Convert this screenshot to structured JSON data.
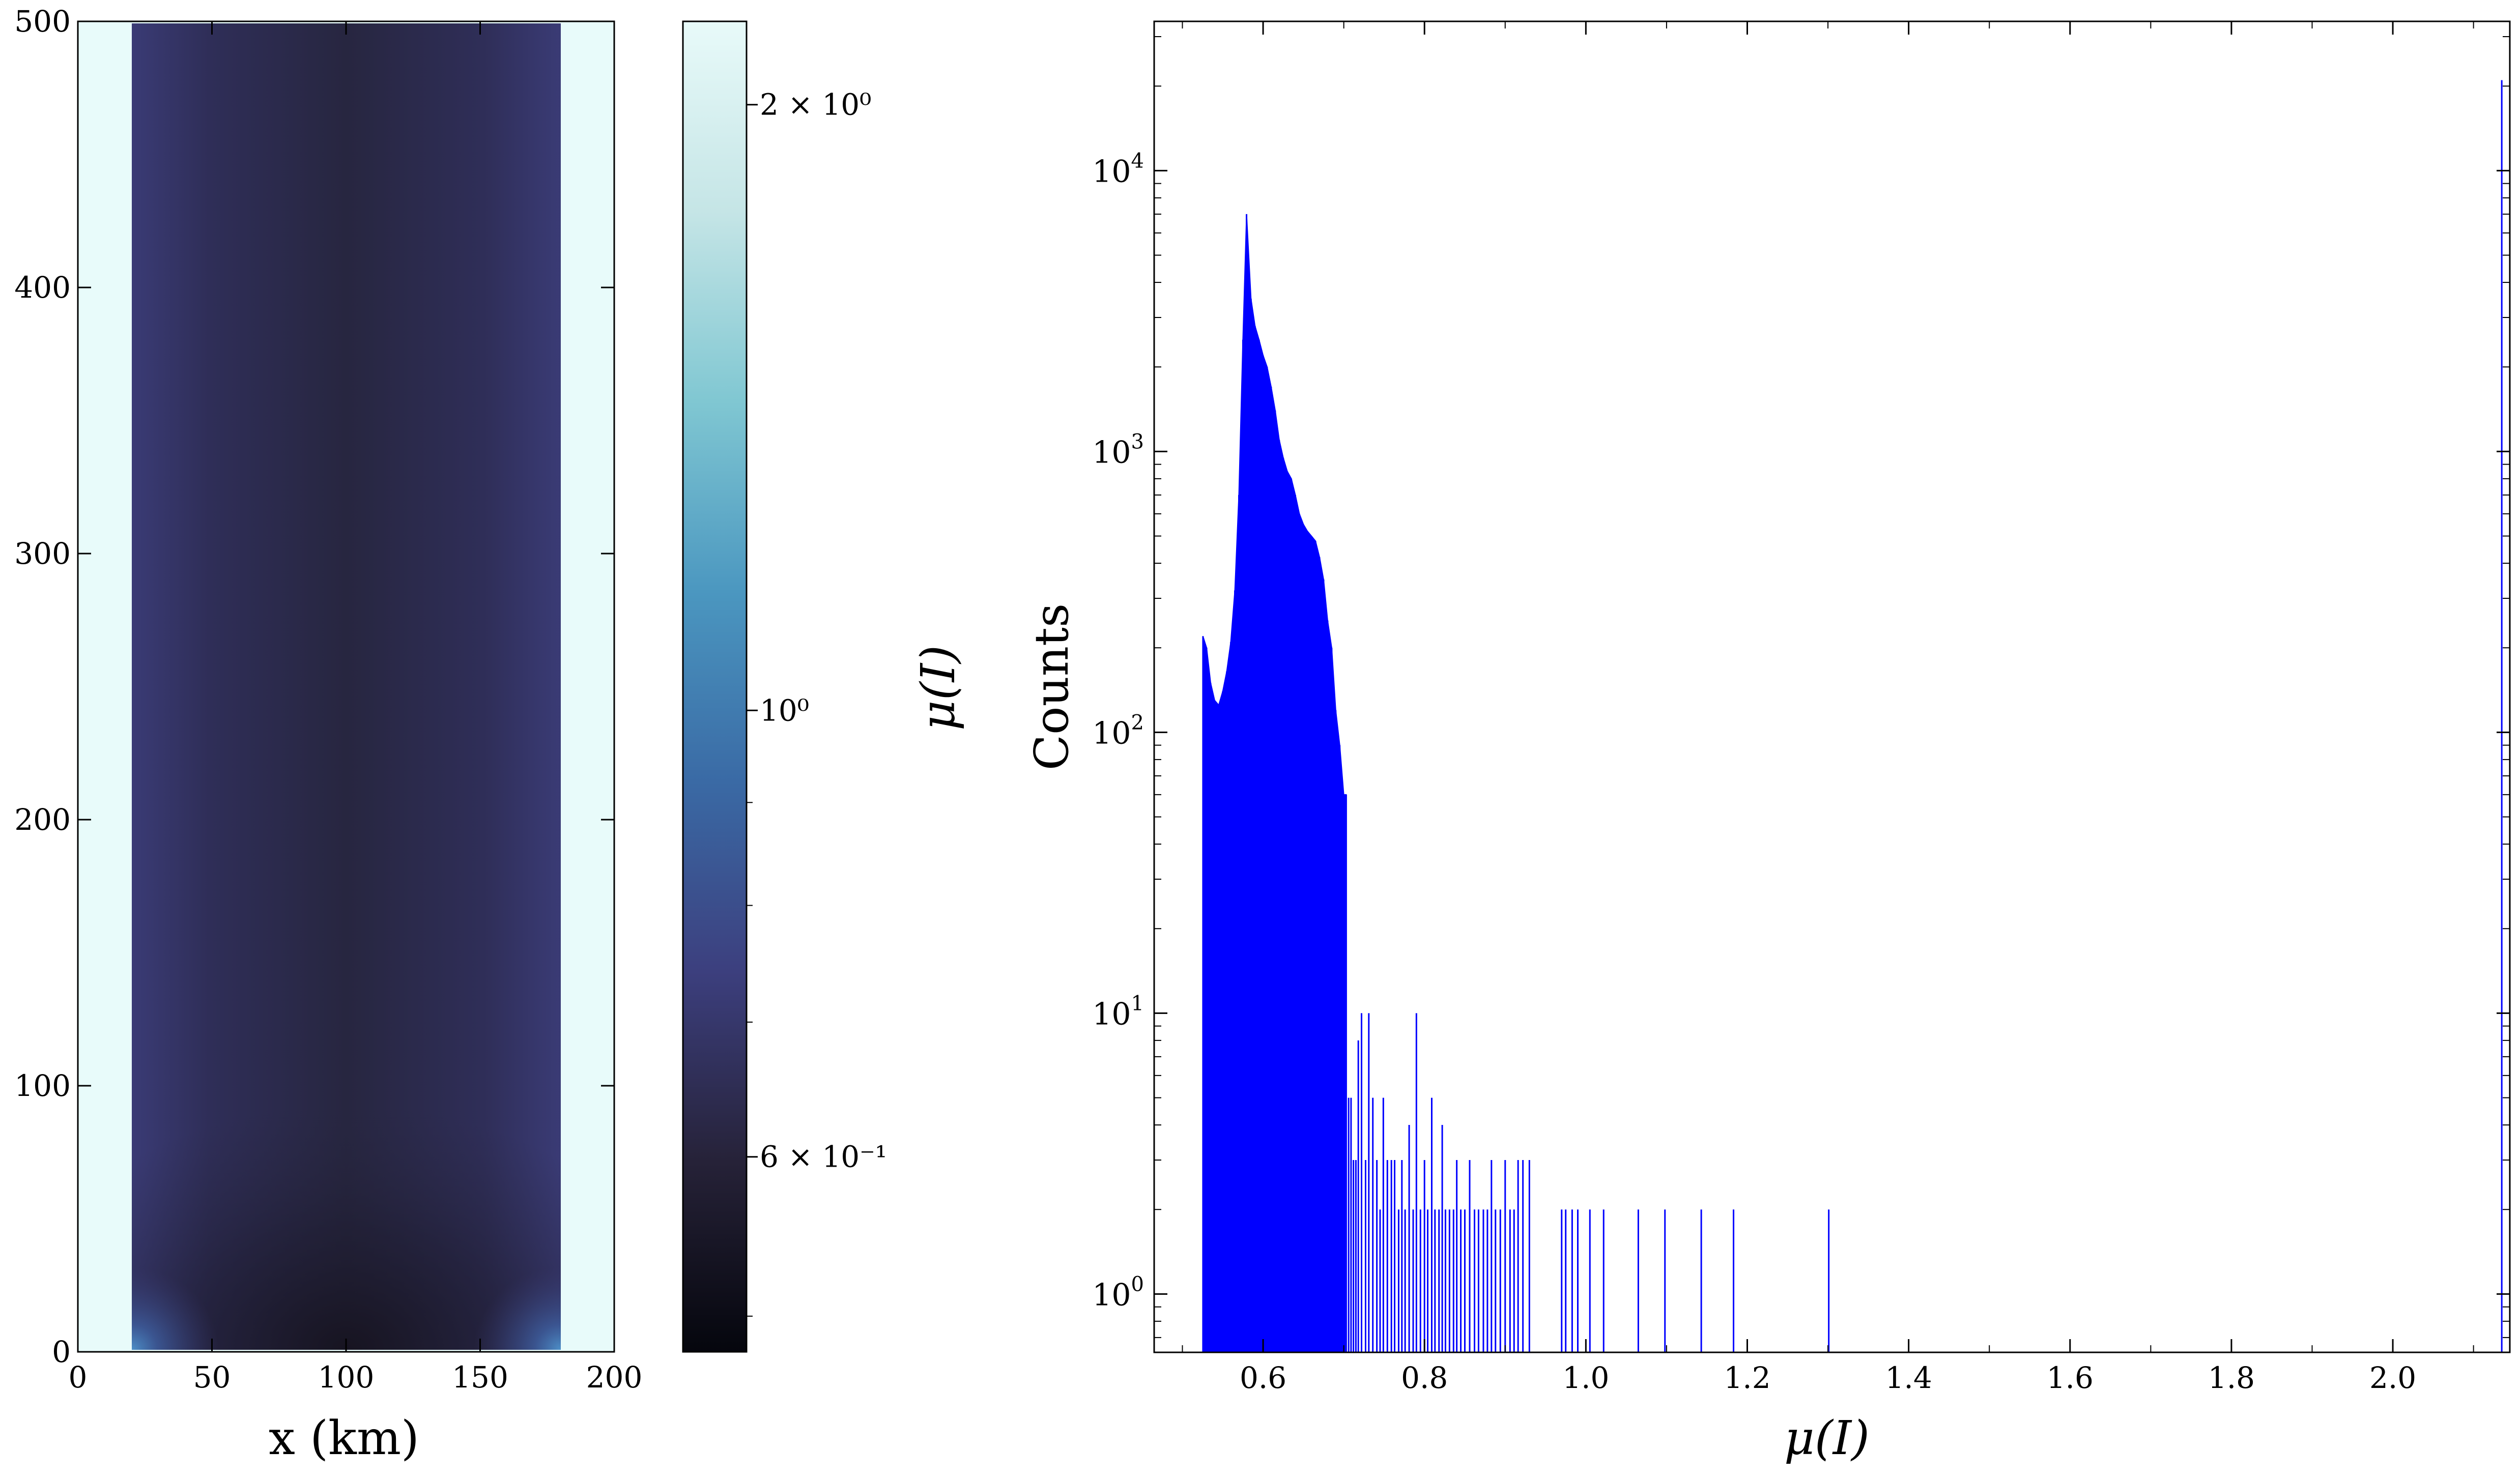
{
  "chart_data": [
    {
      "type": "heatmap",
      "title": "",
      "xlabel": "x (km)",
      "ylabel": "",
      "xlim": [
        0,
        200
      ],
      "ylim": [
        0,
        500
      ],
      "x_ticks": [
        0,
        50,
        100,
        150,
        200
      ],
      "y_ticks": [
        0,
        100,
        200,
        300,
        400,
        500
      ],
      "field_extent_x": [
        20,
        180
      ],
      "field_extent_y": [
        0,
        500
      ],
      "background_value": "above colorbar max",
      "description_values": {
        "interior_typical": 0.56,
        "side_edges": 0.64,
        "bottom_center_min": 0.52,
        "bottom_corners": 1.1
      },
      "colorbar": {
        "label": "μ(I)",
        "scale": "log",
        "range": [
          0.48,
          2.2
        ],
        "ticks": [
          {
            "value": 2,
            "label": "2 × 10⁰"
          },
          {
            "value": 1,
            "label": "10⁰"
          },
          {
            "value": 0.6,
            "label": "6 × 10⁻¹"
          }
        ],
        "colormap_stops": [
          "#05060d",
          "#262238",
          "#3c3f7e",
          "#3a6aa5",
          "#4b97c0",
          "#80c7d2",
          "#c5e5e6",
          "#e8faf9"
        ]
      },
      "colors": {
        "background": "#e8fbfa",
        "field_interior": "#272640",
        "field_edges": "#35356a"
      }
    },
    {
      "type": "bar",
      "title": "",
      "xlabel": "μ(I)",
      "ylabel": "Counts",
      "xlim": [
        0.465,
        2.145
      ],
      "ylim": [
        0.62,
        34000
      ],
      "yscale": "log",
      "x_ticks": [
        {
          "value": 0.6,
          "label": "0.6"
        },
        {
          "value": 0.8,
          "label": "0.8"
        },
        {
          "value": 1.0,
          "label": "1.0"
        },
        {
          "value": 1.2,
          "label": "1.2"
        },
        {
          "value": 1.4,
          "label": "1.4"
        },
        {
          "value": 1.6,
          "label": "1.6"
        },
        {
          "value": 1.8,
          "label": "1.8"
        },
        {
          "value": 2.0,
          "label": "2.0"
        }
      ],
      "y_ticks": [
        {
          "value": 1,
          "base": "10",
          "exp": "0"
        },
        {
          "value": 10,
          "base": "10",
          "exp": "1"
        },
        {
          "value": 100,
          "base": "10",
          "exp": "2"
        },
        {
          "value": 1000,
          "base": "10",
          "exp": "3"
        },
        {
          "value": 10000,
          "base": "10",
          "exp": "4"
        }
      ],
      "bar_color": "#0000ff",
      "envelope": [
        [
          0.5255,
          220
        ],
        [
          0.53,
          200
        ],
        [
          0.535,
          150
        ],
        [
          0.54,
          130
        ],
        [
          0.545,
          125
        ],
        [
          0.55,
          140
        ],
        [
          0.555,
          165
        ],
        [
          0.56,
          210
        ],
        [
          0.565,
          320
        ],
        [
          0.57,
          700
        ],
        [
          0.575,
          2500
        ],
        [
          0.5795,
          7000
        ],
        [
          0.585,
          3500
        ],
        [
          0.59,
          2800
        ],
        [
          0.595,
          2500
        ],
        [
          0.6,
          2200
        ],
        [
          0.605,
          2000
        ],
        [
          0.61,
          1700
        ],
        [
          0.615,
          1400
        ],
        [
          0.62,
          1100
        ],
        [
          0.625,
          950
        ],
        [
          0.63,
          850
        ],
        [
          0.635,
          800
        ],
        [
          0.64,
          700
        ],
        [
          0.645,
          600
        ],
        [
          0.65,
          550
        ],
        [
          0.655,
          520
        ],
        [
          0.66,
          500
        ],
        [
          0.665,
          480
        ],
        [
          0.67,
          420
        ],
        [
          0.675,
          350
        ],
        [
          0.68,
          250
        ],
        [
          0.685,
          200
        ],
        [
          0.69,
          120
        ],
        [
          0.695,
          90
        ],
        [
          0.7,
          60
        ],
        [
          0.703,
          60
        ]
      ],
      "sparse_bars": [
        [
          0.706,
          5
        ],
        [
          0.709,
          5
        ],
        [
          0.712,
          3
        ],
        [
          0.715,
          3
        ],
        [
          0.718,
          8
        ],
        [
          0.722,
          10
        ],
        [
          0.727,
          3
        ],
        [
          0.731,
          10
        ],
        [
          0.736,
          5
        ],
        [
          0.741,
          3
        ],
        [
          0.745,
          2
        ],
        [
          0.749,
          5
        ],
        [
          0.754,
          3
        ],
        [
          0.759,
          3
        ],
        [
          0.763,
          3
        ],
        [
          0.768,
          2
        ],
        [
          0.772,
          3
        ],
        [
          0.776,
          2
        ],
        [
          0.781,
          4
        ],
        [
          0.786,
          2
        ],
        [
          0.79,
          10
        ],
        [
          0.795,
          2
        ],
        [
          0.8,
          3
        ],
        [
          0.804,
          2
        ],
        [
          0.809,
          5
        ],
        [
          0.813,
          2
        ],
        [
          0.818,
          2
        ],
        [
          0.822,
          4
        ],
        [
          0.826,
          2
        ],
        [
          0.831,
          2
        ],
        [
          0.836,
          2
        ],
        [
          0.84,
          3
        ],
        [
          0.845,
          2
        ],
        [
          0.85,
          2
        ],
        [
          0.856,
          3
        ],
        [
          0.862,
          2
        ],
        [
          0.867,
          2
        ],
        [
          0.873,
          2
        ],
        [
          0.878,
          2
        ],
        [
          0.883,
          3
        ],
        [
          0.888,
          2
        ],
        [
          0.894,
          2
        ],
        [
          0.9,
          3
        ],
        [
          0.906,
          2
        ],
        [
          0.911,
          2
        ],
        [
          0.916,
          3
        ],
        [
          0.922,
          3
        ],
        [
          0.93,
          3
        ],
        [
          0.97,
          2
        ],
        [
          0.975,
          2
        ],
        [
          0.983,
          2
        ],
        [
          0.99,
          2
        ],
        [
          1.005,
          2
        ],
        [
          1.022,
          2
        ],
        [
          1.065,
          2
        ],
        [
          1.098,
          2
        ],
        [
          1.143,
          2
        ],
        [
          1.183,
          2
        ],
        [
          1.301,
          2
        ],
        [
          2.135,
          21000
        ]
      ]
    }
  ]
}
